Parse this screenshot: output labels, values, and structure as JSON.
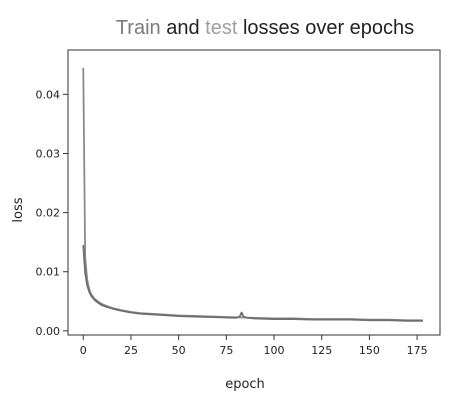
{
  "chart_data": {
    "type": "line",
    "title": {
      "parts": [
        {
          "text": "Train",
          "color": "#7a7a7a"
        },
        {
          "text": " and ",
          "color": "#222222"
        },
        {
          "text": "test",
          "color": "#a0a0a0"
        },
        {
          "text": " losses over epochs",
          "color": "#222222"
        }
      ]
    },
    "xlabel": "epoch",
    "ylabel": "loss",
    "xlim": [
      -8,
      187
    ],
    "ylim": [
      -0.0007,
      0.0475
    ],
    "xticks": [
      0,
      25,
      50,
      75,
      100,
      125,
      150,
      175
    ],
    "yticks": [
      0.0,
      0.01,
      0.02,
      0.03,
      0.04
    ],
    "ytick_labels": [
      "0.00",
      "0.01",
      "0.02",
      "0.03",
      "0.04"
    ],
    "grid": false,
    "series": [
      {
        "color": "#8a8a8a",
        "x": [
          0,
          1,
          2,
          3,
          4,
          5,
          6,
          8,
          10,
          13,
          16,
          20,
          25,
          30,
          40,
          50,
          60,
          70,
          80,
          90,
          100,
          110,
          120,
          130,
          140,
          150,
          160,
          170,
          178
        ],
        "y": [
          0.0445,
          0.0125,
          0.0088,
          0.0072,
          0.0063,
          0.0058,
          0.0054,
          0.0049,
          0.0045,
          0.0041,
          0.0038,
          0.0035,
          0.0032,
          0.003,
          0.0028,
          0.0026,
          0.0025,
          0.0024,
          0.0023,
          0.0022,
          0.0021,
          0.0021,
          0.002,
          0.002,
          0.002,
          0.0019,
          0.0019,
          0.0018,
          0.0018
        ]
      },
      {
        "color": "#6e6e6e",
        "x": [
          0,
          1,
          2,
          3,
          4,
          5,
          6,
          8,
          10,
          13,
          16,
          20,
          25,
          30,
          40,
          50,
          60,
          70,
          80,
          82,
          83,
          84,
          86,
          90,
          100,
          110,
          120,
          130,
          140,
          150,
          160,
          170,
          178
        ],
        "y": [
          0.0145,
          0.0098,
          0.0078,
          0.0067,
          0.006,
          0.0056,
          0.0052,
          0.0047,
          0.0043,
          0.004,
          0.0037,
          0.0034,
          0.0031,
          0.0029,
          0.0027,
          0.0025,
          0.0024,
          0.0023,
          0.0022,
          0.0024,
          0.0031,
          0.0024,
          0.0022,
          0.0021,
          0.002,
          0.002,
          0.0019,
          0.0019,
          0.0019,
          0.0018,
          0.0018,
          0.0017,
          0.0017
        ]
      }
    ]
  }
}
